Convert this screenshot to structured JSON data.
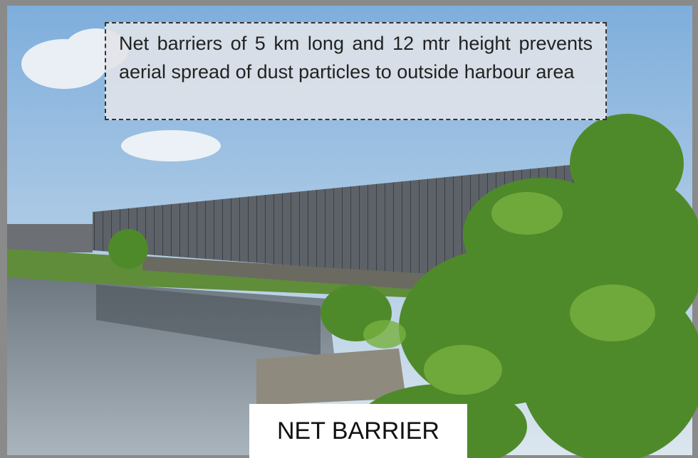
{
  "callout": {
    "text": "Net barriers of 5 km long and 12 mtr height prevents aerial spread of dust particles to outside harbour area"
  },
  "label": {
    "text": "NET BARRIER"
  }
}
